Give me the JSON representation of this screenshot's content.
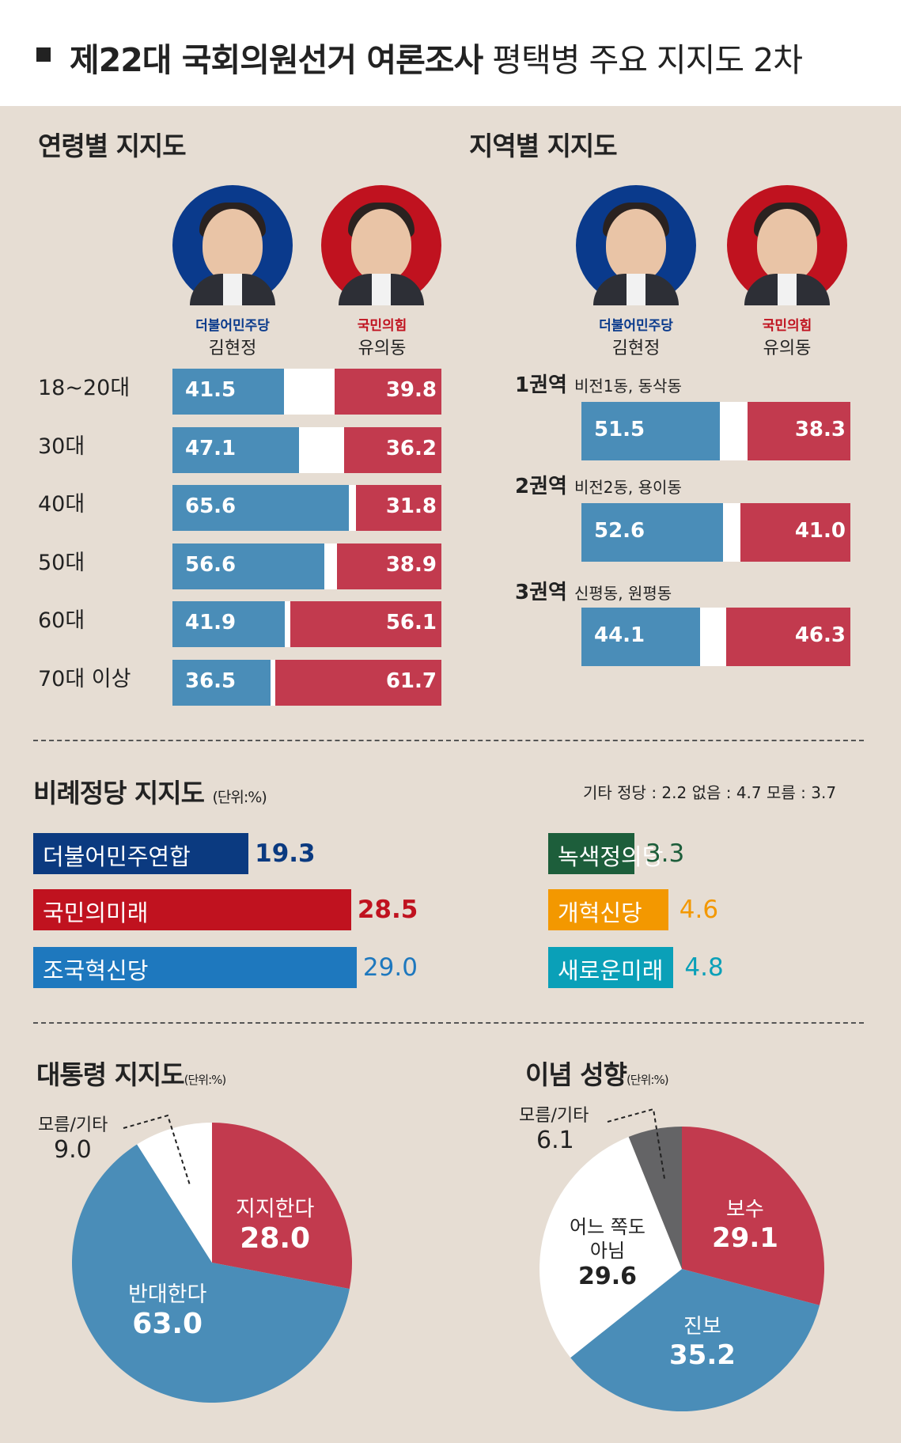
{
  "header": {
    "title_bold": "제22대 국회의원선거 여론조사",
    "title_rest": " 평택병 주요 지지도 2차"
  },
  "candidates": {
    "a": {
      "party": "더불어민주당",
      "name": "김현정",
      "color": "#0a3a8c"
    },
    "b": {
      "party": "국민의힘",
      "name": "유의동",
      "color": "#c0121f"
    }
  },
  "age_support": {
    "title": "연령별 지지도",
    "chart_data": {
      "type": "bar",
      "categories": [
        "18~20대",
        "30대",
        "40대",
        "50대",
        "60대",
        "70대 이상"
      ],
      "series": [
        {
          "name": "김현정",
          "values": [
            "41.5",
            "47.1",
            "65.6",
            "56.6",
            "41.9",
            "36.5"
          ]
        },
        {
          "name": "유의동",
          "values": [
            "39.8",
            "36.2",
            "31.8",
            "38.9",
            "56.1",
            "61.7"
          ]
        }
      ]
    }
  },
  "region_support": {
    "title": "지역별 지지도",
    "chart_data": {
      "type": "bar",
      "categories": [
        {
          "name": "1권역",
          "sub": "비전1동, 동삭동"
        },
        {
          "name": "2권역",
          "sub": "비전2동, 용이동"
        },
        {
          "name": "3권역",
          "sub": "신평동, 원평동"
        }
      ],
      "series": [
        {
          "name": "김현정",
          "values": [
            "51.5",
            "52.6",
            "44.1"
          ]
        },
        {
          "name": "유의동",
          "values": [
            "38.3",
            "41.0",
            "46.3"
          ]
        }
      ]
    }
  },
  "pr_support": {
    "title": "비례정당 지지도",
    "unit": "(단위:%)",
    "other_note": "기타 정당 : 2.2   없음 : 4.7 모름 : 3.7",
    "chart_data": {
      "type": "bar",
      "left": [
        {
          "name": "더불어민주연합",
          "value": "19.3",
          "color": "#0b3a80",
          "text_color": "#0b3a80"
        },
        {
          "name": "국민의미래",
          "value": "28.5",
          "color": "#c0121f",
          "text_color": "#c0121f"
        },
        {
          "name": "조국혁신당",
          "value": "29.0",
          "color": "#1e78be",
          "text_color": "#1e78be"
        }
      ],
      "right": [
        {
          "name": "녹색정의당",
          "value": "3.3",
          "color": "#1d5e3b",
          "text_color": "#1d5e3b"
        },
        {
          "name": "개혁신당",
          "value": "4.6",
          "color": "#f39800",
          "text_color": "#f39800"
        },
        {
          "name": "새로운미래",
          "value": "4.8",
          "color": "#0aa0b8",
          "text_color": "#0aa0b8"
        }
      ]
    }
  },
  "president": {
    "title": "대통령 지지도",
    "unit": "(단위:%)",
    "chart_data": {
      "type": "pie",
      "slices": [
        {
          "name": "지지한다",
          "value": "28.0",
          "color": "#c23a4e"
        },
        {
          "name": "반대한다",
          "value": "63.0",
          "color": "#4a8db8"
        },
        {
          "name": "모름/기타",
          "value": "9.0",
          "color": "#ffffff"
        }
      ]
    }
  },
  "ideology": {
    "title": "이념 성향",
    "unit": "(단위:%)",
    "chart_data": {
      "type": "pie",
      "slices": [
        {
          "name": "보수",
          "value": "29.1",
          "color": "#c23a4e"
        },
        {
          "name": "진보",
          "value": "35.2",
          "color": "#4a8db8"
        },
        {
          "name": "어느 쪽도\n아님",
          "value": "29.6",
          "color": "#ffffff"
        },
        {
          "name": "모름/기타",
          "value": "6.1",
          "color": "#646466"
        }
      ]
    }
  }
}
